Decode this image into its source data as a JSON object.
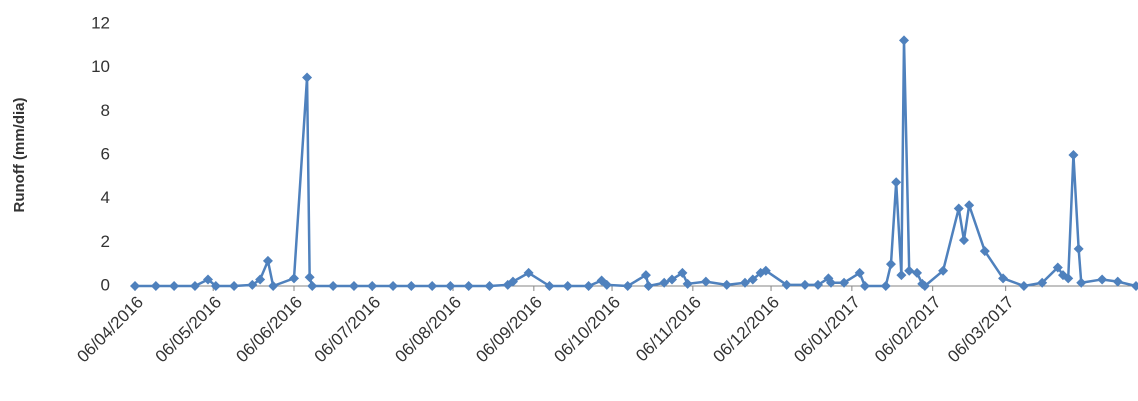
{
  "chart_data": {
    "type": "line",
    "y_label": "Runoff (mm/dia)",
    "color": "#4f81bd",
    "x": [
      "2016-04-06",
      "2016-04-14",
      "2016-04-21",
      "2016-04-29",
      "2016-05-04",
      "2016-05-07",
      "2016-05-14",
      "2016-05-21",
      "2016-05-24",
      "2016-05-27",
      "2016-05-29",
      "2016-06-06",
      "2016-06-11",
      "2016-06-12",
      "2016-06-13",
      "2016-06-21",
      "2016-06-29",
      "2016-07-06",
      "2016-07-14",
      "2016-07-21",
      "2016-07-29",
      "2016-08-05",
      "2016-08-12",
      "2016-08-20",
      "2016-08-27",
      "2016-08-29",
      "2016-09-04",
      "2016-09-12",
      "2016-09-19",
      "2016-09-27",
      "2016-10-02",
      "2016-10-04",
      "2016-10-12",
      "2016-10-19",
      "2016-10-20",
      "2016-10-26",
      "2016-10-29",
      "2016-11-02",
      "2016-11-04",
      "2016-11-11",
      "2016-11-19",
      "2016-11-26",
      "2016-11-29",
      "2016-12-02",
      "2016-12-04",
      "2016-12-12",
      "2016-12-19",
      "2016-12-24",
      "2016-12-28",
      "2016-12-29",
      "2017-01-03",
      "2017-01-09",
      "2017-01-11",
      "2017-01-19",
      "2017-01-21",
      "2017-01-23",
      "2017-01-25",
      "2017-01-26",
      "2017-01-28",
      "2017-01-31",
      "2017-02-02",
      "2017-02-03",
      "2017-02-10",
      "2017-02-16",
      "2017-02-18",
      "2017-02-20",
      "2017-02-26",
      "2017-03-05",
      "2017-03-13",
      "2017-03-20",
      "2017-03-26",
      "2017-03-28",
      "2017-03-30",
      "2017-04-01",
      "2017-04-03",
      "2017-04-04",
      "2017-04-12",
      "2017-04-18",
      "2017-04-25"
    ],
    "values": [
      0,
      0,
      0,
      0,
      0.3,
      0,
      0,
      0.05,
      0.3,
      1.15,
      0,
      0.35,
      9.55,
      0.4,
      0,
      0,
      0,
      0,
      0,
      0,
      0,
      0,
      0,
      0,
      0.05,
      0.2,
      0.6,
      0,
      0,
      0,
      0.25,
      0.05,
      0,
      0.5,
      0,
      0.15,
      0.3,
      0.6,
      0.1,
      0.2,
      0.05,
      0.15,
      0.3,
      0.6,
      0.7,
      0.05,
      0.05,
      0.05,
      0.35,
      0.15,
      0.15,
      0.6,
      0,
      0,
      1.0,
      4.75,
      0.5,
      11.25,
      0.7,
      0.6,
      0.1,
      0,
      0.7,
      3.55,
      2.1,
      3.7,
      1.6,
      0.35,
      0,
      0.15,
      0.85,
      0.5,
      0.35,
      6.0,
      1.7,
      0.15,
      0.3,
      0.2,
      0
    ],
    "xlim": [
      "2016-04-06",
      "2017-04-25"
    ],
    "xticks": [
      {
        "value": "2016-04-06",
        "label": "06/04/2016"
      },
      {
        "value": "2016-05-06",
        "label": "06/05/2016"
      },
      {
        "value": "2016-06-06",
        "label": "06/06/2016"
      },
      {
        "value": "2016-07-06",
        "label": "06/07/2016"
      },
      {
        "value": "2016-08-06",
        "label": "06/08/2016"
      },
      {
        "value": "2016-09-06",
        "label": "06/09/2016"
      },
      {
        "value": "2016-10-06",
        "label": "06/10/2016"
      },
      {
        "value": "2016-11-06",
        "label": "06/11/2016"
      },
      {
        "value": "2016-12-06",
        "label": "06/12/2016"
      },
      {
        "value": "2017-01-06",
        "label": "06/01/2017"
      },
      {
        "value": "2017-02-06",
        "label": "06/02/2017"
      },
      {
        "value": "2017-03-06",
        "label": "06/03/2017"
      }
    ],
    "ylim": [
      0,
      12
    ],
    "yticks": [
      0,
      2,
      4,
      6,
      8,
      10,
      12
    ],
    "grid": false
  }
}
